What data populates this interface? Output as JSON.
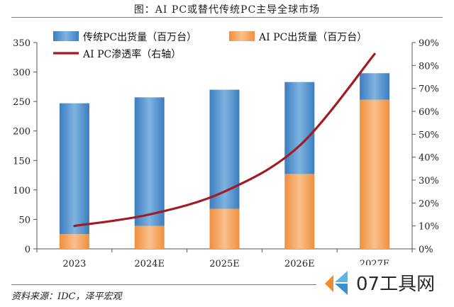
{
  "page": {
    "title": "图：AI PC或替代传统PC主导全球市场",
    "source": "资料来源：IDC，泽平宏观"
  },
  "watermark": {
    "text": "07工具网",
    "icon": "ai-spark-logo-icon"
  },
  "chart_data": {
    "type": "bar",
    "stacked": true,
    "categories": [
      "2023",
      "2024E",
      "2025E",
      "2026E",
      "2027E"
    ],
    "series": [
      {
        "name": "AI PC出货量（百万台）",
        "type": "bar",
        "axis": "left",
        "color": "#f6a055",
        "values": [
          25,
          39,
          68,
          127,
          253
        ]
      },
      {
        "name": "传统PC出货量（百万台）",
        "type": "bar",
        "axis": "left",
        "color": "#4a8fcb",
        "values": [
          222,
          218,
          202,
          156,
          45
        ]
      },
      {
        "name": "AI PC渗透率（右轴）",
        "type": "line",
        "axis": "right",
        "color": "#a31b22",
        "values": [
          0.1,
          0.15,
          0.25,
          0.45,
          0.85
        ]
      }
    ],
    "y_left": {
      "min": 0,
      "max": 350,
      "ticks": [
        0,
        50,
        100,
        150,
        200,
        250,
        300,
        350
      ]
    },
    "y_right": {
      "min": 0,
      "max": 0.9,
      "ticks": [
        "0%",
        "10%",
        "20%",
        "30%",
        "40%",
        "50%",
        "60%",
        "70%",
        "80%",
        "90%"
      ]
    },
    "grid": false,
    "legend_position": "top-left"
  }
}
